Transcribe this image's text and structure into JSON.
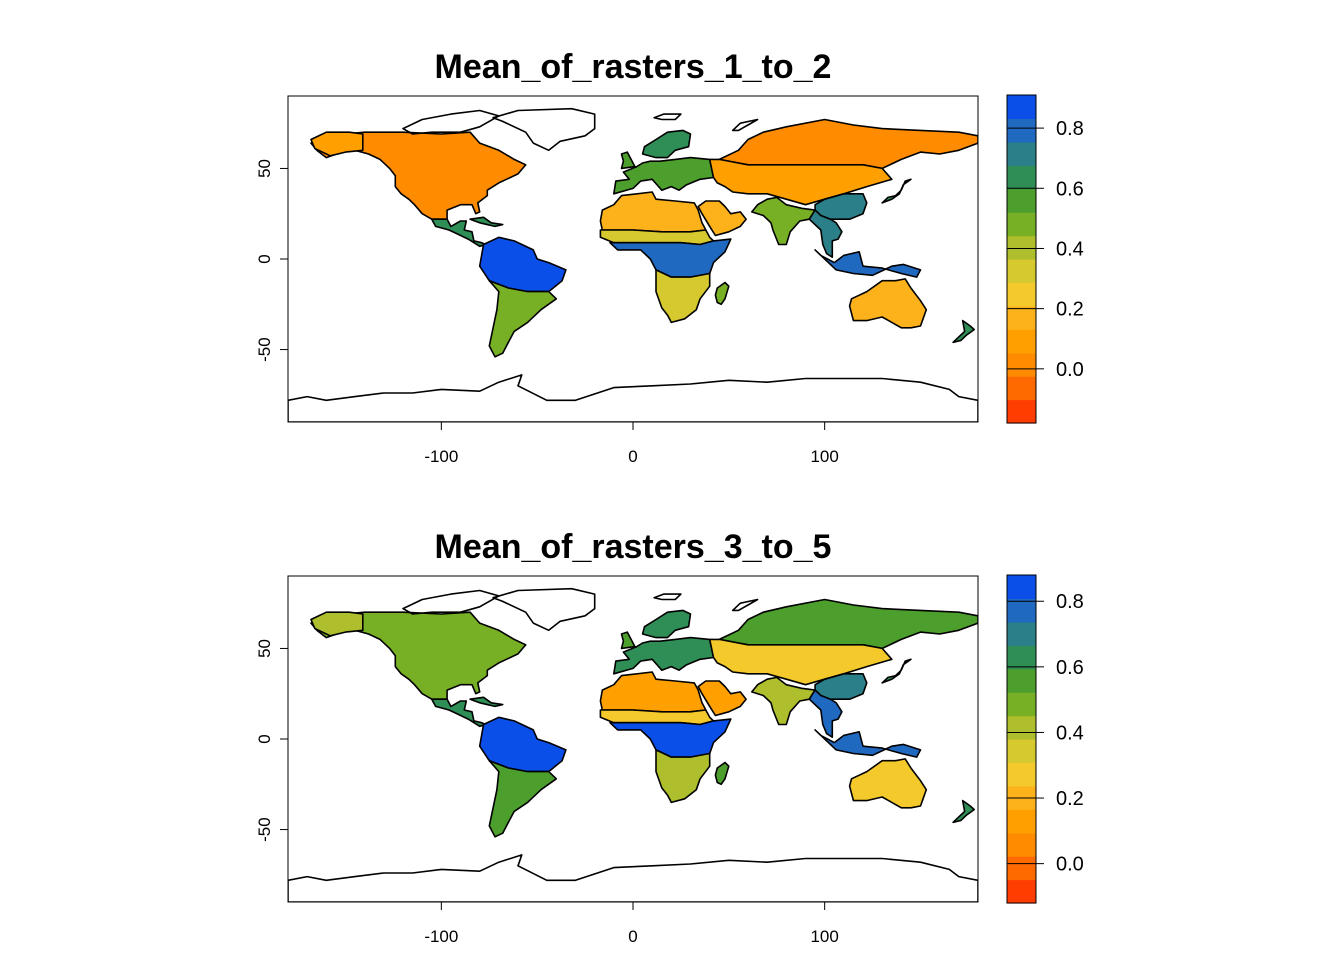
{
  "chart_data": [
    {
      "type": "heatmap",
      "subtype": "global raster map with coastline outlines",
      "title": "Mean_of_rasters_1_to_2",
      "xlabel": "",
      "ylabel": "",
      "xlim": [
        -180,
        180
      ],
      "ylim": [
        -90,
        90
      ],
      "x_ticks": [
        -100,
        0,
        100
      ],
      "y_ticks": [
        -50,
        0,
        50
      ],
      "x_tick_labels": [
        "-100",
        "0",
        "100"
      ],
      "y_tick_labels": [
        "-50",
        "0",
        "50"
      ],
      "grid": false,
      "legend": {
        "placement": "right",
        "range": [
          -0.18,
          0.91
        ],
        "ticks": [
          0.0,
          0.2,
          0.4,
          0.6,
          0.8
        ],
        "tick_labels": [
          "0.0",
          "0.2",
          "0.4",
          "0.6",
          "0.8"
        ],
        "colors": [
          "#ff3d00",
          "#ff6a00",
          "#ff8c00",
          "#ffa000",
          "#fdb21c",
          "#f4c92b",
          "#d6c92f",
          "#aebe2c",
          "#78b025",
          "#4c9f2c",
          "#2f8e55",
          "#2b7f88",
          "#2069c0",
          "#0a4fe8"
        ]
      },
      "regions": [
        {
          "name": "North America",
          "value": 0.05
        },
        {
          "name": "Alaska",
          "value": 0.1
        },
        {
          "name": "Greenland",
          "value": null
        },
        {
          "name": "Central America",
          "value": 0.6
        },
        {
          "name": "Amazon basin",
          "value": 0.85
        },
        {
          "name": "Southern South America",
          "value": 0.5
        },
        {
          "name": "Europe",
          "value": 0.55
        },
        {
          "name": "Scandinavia",
          "value": 0.6
        },
        {
          "name": "Sahara",
          "value": 0.15
        },
        {
          "name": "Arabian Peninsula",
          "value": 0.15
        },
        {
          "name": "Sahel",
          "value": 0.35
        },
        {
          "name": "Congo basin",
          "value": 0.8
        },
        {
          "name": "Southern Africa",
          "value": 0.3
        },
        {
          "name": "Madagascar",
          "value": 0.5
        },
        {
          "name": "Siberia",
          "value": 0.05
        },
        {
          "name": "Central Asia",
          "value": 0.1
        },
        {
          "name": "Indian subcontinent",
          "value": 0.45
        },
        {
          "name": "South China",
          "value": 0.7
        },
        {
          "name": "Southeast Asia",
          "value": 0.75
        },
        {
          "name": "Maritime Southeast Asia",
          "value": 0.8
        },
        {
          "name": "Australia",
          "value": 0.2
        },
        {
          "name": "New Zealand",
          "value": 0.6
        }
      ]
    },
    {
      "type": "heatmap",
      "subtype": "global raster map with coastline outlines",
      "title": "Mean_of_rasters_3_to_5",
      "xlabel": "",
      "ylabel": "",
      "xlim": [
        -180,
        180
      ],
      "ylim": [
        -90,
        90
      ],
      "x_ticks": [
        -100,
        0,
        100
      ],
      "y_ticks": [
        -50,
        0,
        50
      ],
      "x_tick_labels": [
        "-100",
        "0",
        "100"
      ],
      "y_tick_labels": [
        "-50",
        "0",
        "50"
      ],
      "grid": false,
      "legend": {
        "placement": "right",
        "range": [
          -0.12,
          0.88
        ],
        "ticks": [
          0.0,
          0.2,
          0.4,
          0.6,
          0.8
        ],
        "tick_labels": [
          "0.0",
          "0.2",
          "0.4",
          "0.6",
          "0.8"
        ],
        "colors": [
          "#ff3d00",
          "#ff6a00",
          "#ff8c00",
          "#ffa000",
          "#fdb21c",
          "#f4c92b",
          "#d6c92f",
          "#aebe2c",
          "#78b025",
          "#4c9f2c",
          "#2f8e55",
          "#2b7f88",
          "#2069c0",
          "#0a4fe8"
        ]
      },
      "regions": [
        {
          "name": "North America",
          "value": 0.5
        },
        {
          "name": "Alaska",
          "value": 0.45
        },
        {
          "name": "Greenland",
          "value": null
        },
        {
          "name": "Central America",
          "value": 0.65
        },
        {
          "name": "Amazon basin",
          "value": 0.82
        },
        {
          "name": "Southern South America",
          "value": 0.55
        },
        {
          "name": "Europe",
          "value": 0.65
        },
        {
          "name": "Scandinavia",
          "value": 0.65
        },
        {
          "name": "Sahara",
          "value": 0.15
        },
        {
          "name": "Arabian Peninsula",
          "value": 0.15
        },
        {
          "name": "Sahel",
          "value": 0.3
        },
        {
          "name": "Congo basin",
          "value": 0.85
        },
        {
          "name": "Southern Africa",
          "value": 0.45
        },
        {
          "name": "Madagascar",
          "value": 0.55
        },
        {
          "name": "Siberia",
          "value": 0.55
        },
        {
          "name": "Central Asia",
          "value": 0.3
        },
        {
          "name": "Indian subcontinent",
          "value": 0.45
        },
        {
          "name": "South China",
          "value": 0.7
        },
        {
          "name": "Southeast Asia",
          "value": 0.75
        },
        {
          "name": "Maritime Southeast Asia",
          "value": 0.8
        },
        {
          "name": "Australia",
          "value": 0.25
        },
        {
          "name": "New Zealand",
          "value": 0.6
        }
      ]
    }
  ]
}
